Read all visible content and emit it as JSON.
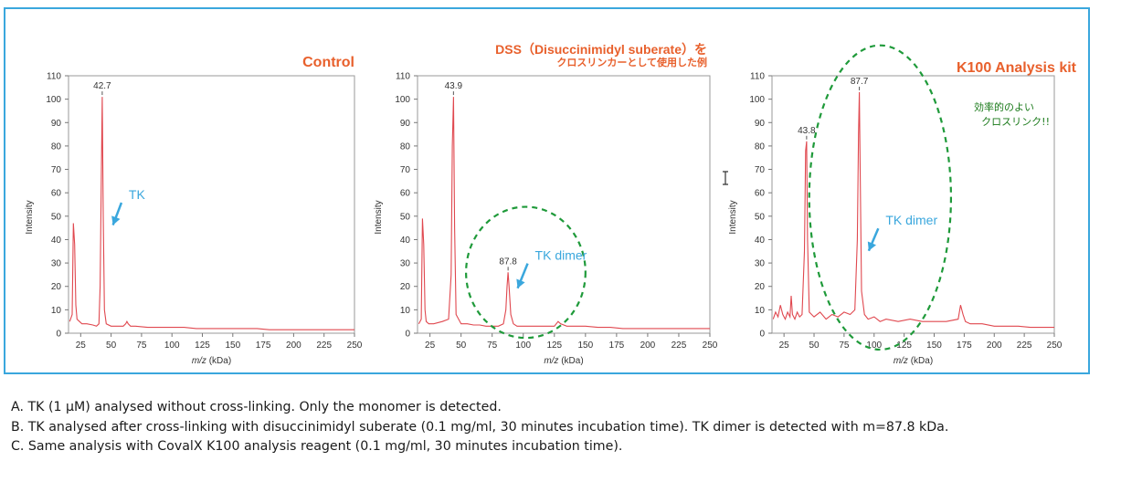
{
  "figure": {
    "border_color": "#3aa7dd",
    "title_color": "#e8602c",
    "series_color": "#e0484f",
    "arrow_color": "#3aa7dd",
    "ellipse_color": "#1f9a3a"
  },
  "chart_data": [
    {
      "type": "line",
      "title": "Control",
      "xlabel": "m/z (kDa)",
      "ylabel": "Intensity",
      "xlim": [
        15,
        250
      ],
      "ylim": [
        0,
        110
      ],
      "xticks": [
        25,
        50,
        75,
        100,
        125,
        150,
        175,
        200,
        225,
        250
      ],
      "yticks": [
        0,
        10,
        20,
        30,
        40,
        50,
        60,
        70,
        80,
        90,
        100,
        110
      ],
      "x": [
        16,
        18,
        19,
        20,
        21,
        22,
        24,
        26,
        30,
        35,
        38,
        40,
        41,
        42,
        42.7,
        43.5,
        44.5,
        46,
        50,
        55,
        60,
        62,
        63,
        64,
        66,
        70,
        80,
        90,
        100,
        110,
        120,
        130,
        140,
        150,
        160,
        170,
        180,
        190,
        200,
        210,
        220,
        230,
        240,
        250
      ],
      "y": [
        5,
        8,
        47,
        38,
        12,
        6,
        5,
        4,
        4,
        3.5,
        3,
        4,
        20,
        70,
        101,
        50,
        10,
        4,
        3,
        3,
        3,
        4,
        5,
        4,
        3,
        3,
        2.5,
        2.5,
        2.5,
        2.5,
        2,
        2,
        2,
        2,
        2,
        2,
        1.5,
        1.5,
        1.5,
        1.5,
        1.5,
        1.5,
        1.5,
        1.5
      ],
      "peak_labels": [
        {
          "x": 42.7,
          "y": 101,
          "text": "42.7"
        }
      ],
      "annotations": [
        {
          "text": "TK",
          "x": 50,
          "y": 47,
          "tx": 60,
          "ty": 55
        }
      ]
    },
    {
      "type": "line",
      "title": "DSS（Disuccinimidyl suberate）を",
      "subtitle": "クロスリンカーとして使用した例",
      "xlabel": "m/z (kDa)",
      "ylabel": "Intensity",
      "xlim": [
        15,
        250
      ],
      "ylim": [
        0,
        110
      ],
      "xticks": [
        25,
        50,
        75,
        100,
        125,
        150,
        175,
        200,
        225,
        250
      ],
      "yticks": [
        0,
        10,
        20,
        30,
        40,
        50,
        60,
        70,
        80,
        90,
        100,
        110
      ],
      "x": [
        16,
        18,
        19,
        20,
        21,
        22,
        24,
        28,
        35,
        40,
        42,
        43,
        43.9,
        44.8,
        46,
        50,
        55,
        60,
        65,
        70,
        75,
        80,
        84,
        86,
        87,
        87.8,
        88.6,
        90,
        92,
        95,
        100,
        110,
        120,
        125,
        128,
        130,
        135,
        140,
        150,
        160,
        170,
        180,
        200,
        220,
        240,
        250
      ],
      "y": [
        4,
        6,
        49,
        38,
        10,
        5,
        4,
        4,
        5,
        6,
        25,
        80,
        101,
        45,
        8,
        4,
        4,
        3.5,
        3.5,
        3,
        3,
        3,
        4,
        10,
        20,
        26,
        20,
        8,
        4,
        3,
        3,
        3,
        3,
        3,
        5,
        4,
        3,
        3,
        3,
        2.5,
        2.5,
        2,
        2,
        2,
        2,
        2
      ],
      "peak_labels": [
        {
          "x": 43.9,
          "y": 101,
          "text": "43.9"
        },
        {
          "x": 87.8,
          "y": 26,
          "text": "87.8"
        }
      ],
      "annotations": [
        {
          "text": "TK dimer",
          "x": 94,
          "y": 20,
          "tx": 105,
          "ty": 29
        }
      ],
      "highlight": {
        "cx": 102,
        "cy": 26,
        "rx": 48,
        "ry": 28
      }
    },
    {
      "type": "line",
      "title": "K100 Analysis kit",
      "xlabel": "m/z (kDa)",
      "ylabel": "Intensity",
      "xlim": [
        15,
        250
      ],
      "ylim": [
        0,
        110
      ],
      "xticks": [
        25,
        50,
        75,
        100,
        125,
        150,
        175,
        200,
        225,
        250
      ],
      "yticks": [
        0,
        10,
        20,
        30,
        40,
        50,
        60,
        70,
        80,
        90,
        100,
        110
      ],
      "x": [
        16,
        18,
        20,
        22,
        24,
        26,
        28,
        30,
        31,
        32,
        34,
        36,
        38,
        40,
        42,
        43,
        43.8,
        44.6,
        46,
        50,
        55,
        60,
        65,
        70,
        75,
        80,
        84,
        86,
        87,
        87.7,
        88.4,
        89.5,
        92,
        95,
        100,
        105,
        110,
        120,
        130,
        140,
        150,
        160,
        170,
        172,
        174,
        176,
        180,
        190,
        200,
        210,
        220,
        230,
        240,
        250
      ],
      "y": [
        6,
        9,
        7,
        12,
        8,
        6,
        9,
        7,
        16,
        8,
        6,
        9,
        7,
        8,
        35,
        78,
        82,
        40,
        9,
        7,
        9,
        6,
        8,
        7,
        9,
        8,
        10,
        40,
        85,
        103,
        70,
        18,
        8,
        6,
        7,
        5,
        6,
        5,
        6,
        5,
        5,
        5,
        6,
        12,
        8,
        5,
        4,
        4,
        3,
        3,
        3,
        2.5,
        2.5,
        2.5
      ],
      "peak_labels": [
        {
          "x": 43.8,
          "y": 82,
          "text": "43.8"
        },
        {
          "x": 87.7,
          "y": 103,
          "text": "87.7"
        }
      ],
      "annotations": [
        {
          "text": "TK dimer",
          "x": 94,
          "y": 36,
          "tx": 105,
          "ty": 44
        }
      ],
      "highlight": {
        "cx": 105,
        "cy": 58,
        "rx": 59,
        "ry": 65
      },
      "note_lines": [
        "効率的のよい",
        "クロスリンク!!"
      ]
    }
  ],
  "captions": [
    "A. TK (1 μM) analysed without cross-linking. Only the monomer is detected.",
    "B. TK analysed after cross-linking with disuccinimidyl suberate (0.1 mg/ml, 30 minutes incubation time). TK dimer is detected with m=87.8 kDa.",
    "C. Same analysis with CovalX K100 analysis reagent (0.1 mg/ml, 30 minutes incubation time)."
  ]
}
